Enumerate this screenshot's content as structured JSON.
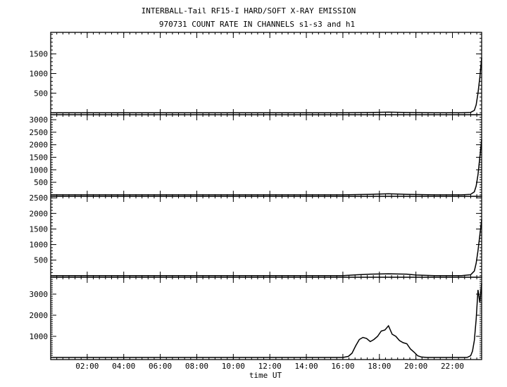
{
  "title_line1": "INTERBALL-Tail RF15-I HARD/SOFT X-RAY EMISSION",
  "title_line2": "970731  COUNT RATE IN CHANNELS s1-s3 and h1",
  "chart_data": {
    "type": "line",
    "xlabel": "time UT",
    "x_unit": "hours UT",
    "xlim": [
      0,
      23.6
    ],
    "x_ticks": [
      2,
      4,
      6,
      8,
      10,
      12,
      14,
      16,
      18,
      20,
      22
    ],
    "x_tick_labels": [
      "02:00",
      "04:00",
      "06:00",
      "08:00",
      "10:00",
      "12:00",
      "14:00",
      "16:00",
      "18:00",
      "20:00",
      "22:00"
    ],
    "panels": [
      {
        "name": "s1",
        "ylim": [
          -50,
          2050
        ],
        "y_ticks": [
          500,
          1000,
          1500
        ],
        "y_tick_labels": [
          "500",
          "1000",
          "1500"
        ],
        "x": [
          0,
          2,
          4,
          6,
          8,
          10,
          12,
          14,
          16,
          17.5,
          18.5,
          19.5,
          21,
          22.5,
          23.0,
          23.2,
          23.3,
          23.4,
          23.5,
          23.6
        ],
        "values": [
          0,
          0,
          0,
          0,
          0,
          0,
          0,
          0,
          0,
          5,
          15,
          5,
          0,
          0,
          10,
          60,
          200,
          500,
          900,
          1400
        ]
      },
      {
        "name": "s2",
        "ylim": [
          -60,
          3200
        ],
        "y_ticks": [
          500,
          1000,
          1500,
          2000,
          2500,
          3000
        ],
        "y_tick_labels": [
          "500",
          "1000",
          "1500",
          "2000",
          "2500",
          "3000"
        ],
        "x": [
          0,
          2,
          4,
          6,
          8,
          10,
          12,
          14,
          16,
          17.5,
          18.5,
          19.5,
          21,
          22.5,
          23.0,
          23.2,
          23.3,
          23.4,
          23.5,
          23.6
        ],
        "values": [
          0,
          0,
          0,
          0,
          0,
          0,
          0,
          0,
          0,
          20,
          40,
          15,
          0,
          0,
          20,
          120,
          350,
          800,
          1500,
          2200
        ]
      },
      {
        "name": "s3",
        "ylim": [
          -50,
          2550
        ],
        "y_ticks": [
          500,
          1000,
          1500,
          2000,
          2500
        ],
        "y_tick_labels": [
          "500",
          "1000",
          "1500",
          "2000",
          "2500"
        ],
        "x": [
          0,
          2,
          4,
          6,
          8,
          10,
          12,
          14,
          16,
          16.8,
          17.5,
          18.5,
          19.5,
          20.0,
          21,
          22.5,
          23.0,
          23.2,
          23.3,
          23.4,
          23.5,
          23.6
        ],
        "values": [
          0,
          0,
          0,
          0,
          0,
          0,
          0,
          0,
          0,
          30,
          50,
          60,
          50,
          20,
          0,
          0,
          30,
          150,
          400,
          800,
          1300,
          1800
        ]
      },
      {
        "name": "h1",
        "ylim": [
          -100,
          3800
        ],
        "y_ticks": [
          1000,
          2000,
          3000
        ],
        "y_tick_labels": [
          "1000",
          "2000",
          "3000"
        ],
        "x": [
          0,
          2,
          4,
          6,
          8,
          10,
          12,
          14,
          16,
          16.3,
          16.5,
          16.7,
          16.9,
          17.1,
          17.3,
          17.5,
          17.7,
          17.9,
          18.1,
          18.3,
          18.5,
          18.7,
          18.9,
          19.1,
          19.3,
          19.5,
          19.7,
          19.9,
          20.1,
          20.3,
          20.6,
          21,
          22,
          22.8,
          23.0,
          23.1,
          23.2,
          23.3,
          23.4,
          23.5,
          23.6
        ],
        "values": [
          0,
          0,
          0,
          0,
          0,
          0,
          0,
          0,
          0,
          50,
          200,
          550,
          850,
          950,
          900,
          750,
          850,
          1000,
          1250,
          1300,
          1500,
          1100,
          1000,
          800,
          700,
          650,
          400,
          250,
          80,
          20,
          0,
          0,
          0,
          0,
          80,
          300,
          800,
          1800,
          3200,
          2600,
          3500
        ]
      }
    ]
  }
}
